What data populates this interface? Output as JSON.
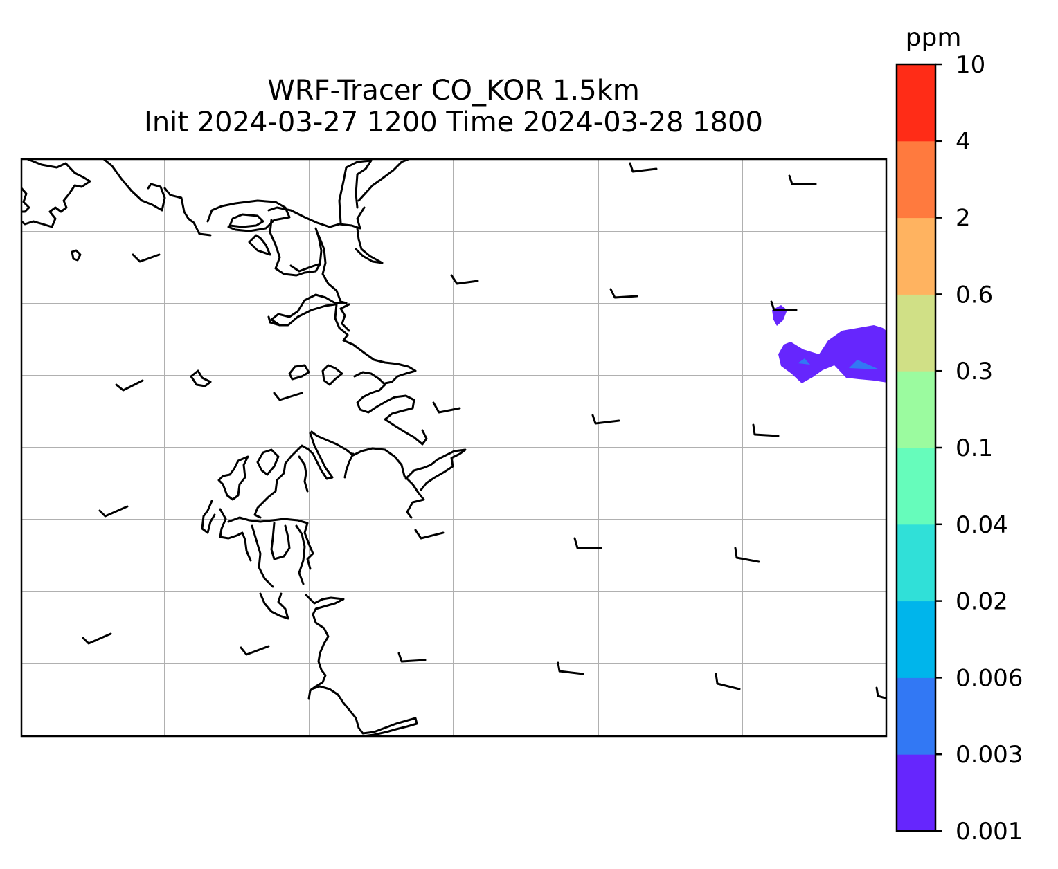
{
  "title": {
    "line1": "WRF-Tracer CO_KOR 1.5km",
    "line2": "Init 2024-03-27 1200 Time 2024-03-28 1800"
  },
  "colorbar": {
    "unit": "ppm",
    "levels": [
      "0.001",
      "0.003",
      "0.006",
      "0.02",
      "0.04",
      "0.1",
      "0.3",
      "0.6",
      "2",
      "4",
      "10"
    ],
    "colors": [
      "#6626fd",
      "#3278f4",
      "#00b5eb",
      "#30e0d8",
      "#66fcbb",
      "#9bfb9f",
      "#d0e086",
      "#ffb360",
      "#ff7a3e",
      "#ff2c17"
    ]
  },
  "map": {
    "gridlines": true,
    "coastline_color": "#000000",
    "grid_color": "#b0b0b0"
  }
}
